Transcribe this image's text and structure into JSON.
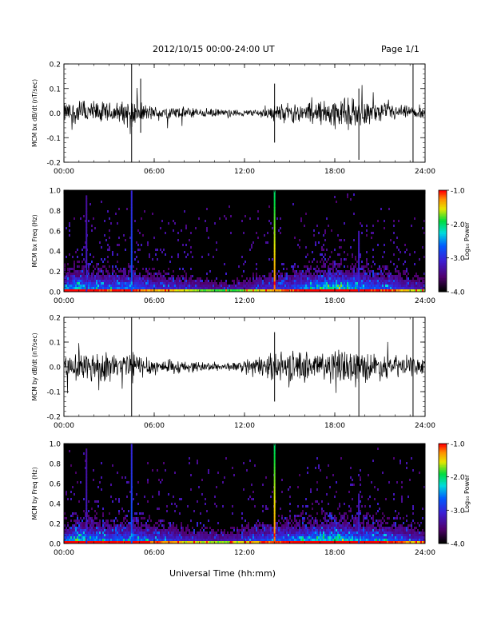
{
  "header": {
    "title": "2012/10/15  00:00-24:00 UT",
    "page": "Page 1/1"
  },
  "footer": {
    "xlabel": "Universal Time (hh:mm)"
  },
  "chart_data": [
    {
      "type": "line",
      "ylabel": "MCM bx dB/dt (nT/sec)",
      "xlim": [
        "00:00",
        "24:00"
      ],
      "xticks": [
        "00:00",
        "06:00",
        "12:00",
        "18:00",
        "24:00"
      ],
      "ylim": [
        -0.2,
        0.2
      ],
      "yticks": [
        "-0.2",
        "-0.1",
        "0.0",
        "0.1",
        "0.2"
      ],
      "envelope": {
        "x_hours": [
          0,
          1,
          2,
          3,
          4,
          4.5,
          5,
          6,
          7,
          8,
          9,
          10,
          11,
          12,
          13,
          14,
          15,
          16,
          17,
          18,
          19,
          20,
          21,
          22,
          23,
          24
        ],
        "amplitude": [
          0.06,
          0.08,
          0.07,
          0.06,
          0.07,
          0.1,
          0.06,
          0.04,
          0.04,
          0.035,
          0.03,
          0.025,
          0.02,
          0.02,
          0.025,
          0.05,
          0.06,
          0.06,
          0.08,
          0.09,
          0.09,
          0.07,
          0.06,
          0.05,
          0.04,
          0.03
        ]
      },
      "spikes": [
        {
          "x_hours": 4.5,
          "min": -0.2,
          "max": 0.2
        },
        {
          "x_hours": 5.1,
          "min": -0.08,
          "max": 0.14
        },
        {
          "x_hours": 14.0,
          "min": -0.12,
          "max": 0.12
        },
        {
          "x_hours": 19.6,
          "min": -0.19,
          "max": 0.1
        },
        {
          "x_hours": 23.2,
          "min": -0.2,
          "max": 0.2
        }
      ]
    },
    {
      "type": "heatmap",
      "ylabel": "MCM bx Freq (Hz)",
      "xlim": [
        "00:00",
        "24:00"
      ],
      "xticks": [
        "00:00",
        "06:00",
        "12:00",
        "18:00",
        "24:00"
      ],
      "ylim": [
        0.0,
        1.0
      ],
      "yticks": [
        "0.0",
        "0.2",
        "0.4",
        "0.6",
        "0.8",
        "1.0"
      ],
      "colorbar": {
        "label": "Log₁₀ Power",
        "range": [
          -4.0,
          -1.0
        ],
        "ticks": [
          "-1.0",
          "-2.0",
          "-3.0",
          "-4.0"
        ]
      },
      "activity": {
        "x_hours": [
          0,
          1,
          2,
          3,
          4,
          5,
          6,
          7,
          8,
          9,
          10,
          11,
          12,
          13,
          14,
          15,
          16,
          17,
          18,
          19,
          20,
          21,
          22,
          23,
          24
        ],
        "level": [
          0.5,
          0.6,
          0.5,
          0.45,
          0.5,
          0.45,
          0.35,
          0.35,
          0.3,
          0.25,
          0.2,
          0.2,
          0.25,
          0.3,
          0.35,
          0.4,
          0.5,
          0.6,
          0.65,
          0.6,
          0.5,
          0.45,
          0.4,
          0.3,
          0.25
        ]
      },
      "lines": [
        {
          "x_hours": 1.5,
          "top": 0.95,
          "strength": 0.3
        },
        {
          "x_hours": 4.5,
          "top": 1.0,
          "strength": 0.45
        },
        {
          "x_hours": 14.0,
          "top": 1.0,
          "strength": 0.95
        },
        {
          "x_hours": 19.6,
          "top": 0.6,
          "strength": 0.35
        }
      ]
    },
    {
      "type": "line",
      "ylabel": "MCM by dB/dt (nT/sec)",
      "xlim": [
        "00:00",
        "24:00"
      ],
      "xticks": [
        "00:00",
        "06:00",
        "12:00",
        "18:00",
        "24:00"
      ],
      "ylim": [
        -0.2,
        0.2
      ],
      "yticks": [
        "-0.2",
        "-0.1",
        "0.0",
        "0.1",
        "0.2"
      ],
      "envelope": {
        "x_hours": [
          0,
          1,
          2,
          3,
          4,
          4.5,
          5,
          6,
          7,
          8,
          9,
          10,
          11,
          12,
          13,
          14,
          15,
          16,
          17,
          18,
          19,
          20,
          21,
          22,
          23,
          24
        ],
        "amplitude": [
          0.05,
          0.1,
          0.1,
          0.08,
          0.08,
          0.12,
          0.07,
          0.05,
          0.04,
          0.035,
          0.03,
          0.025,
          0.025,
          0.03,
          0.06,
          0.08,
          0.09,
          0.09,
          0.1,
          0.1,
          0.1,
          0.09,
          0.08,
          0.07,
          0.06,
          0.04
        ]
      },
      "spikes": [
        {
          "x_hours": 4.5,
          "min": -0.2,
          "max": 0.2
        },
        {
          "x_hours": 14.0,
          "min": -0.14,
          "max": 0.14
        },
        {
          "x_hours": 19.6,
          "min": -0.2,
          "max": 0.2
        },
        {
          "x_hours": 23.2,
          "min": -0.2,
          "max": 0.2
        }
      ]
    },
    {
      "type": "heatmap",
      "ylabel": "MCM by Freq (Hz)",
      "xlim": [
        "00:00",
        "24:00"
      ],
      "xticks": [
        "00:00",
        "06:00",
        "12:00",
        "18:00",
        "24:00"
      ],
      "ylim": [
        0.0,
        1.0
      ],
      "yticks": [
        "0.0",
        "0.2",
        "0.4",
        "0.6",
        "0.8",
        "1.0"
      ],
      "colorbar": {
        "label": "Log₁₀ Power",
        "range": [
          -4.0,
          -1.0
        ],
        "ticks": [
          "-1.0",
          "-2.0",
          "-3.0",
          "-4.0"
        ]
      },
      "activity": {
        "x_hours": [
          0,
          1,
          2,
          3,
          4,
          5,
          6,
          7,
          8,
          9,
          10,
          11,
          12,
          13,
          14,
          15,
          16,
          17,
          18,
          19,
          20,
          21,
          22,
          23,
          24
        ],
        "level": [
          0.5,
          0.6,
          0.55,
          0.5,
          0.5,
          0.5,
          0.4,
          0.4,
          0.3,
          0.3,
          0.25,
          0.25,
          0.3,
          0.4,
          0.45,
          0.5,
          0.55,
          0.6,
          0.65,
          0.6,
          0.55,
          0.5,
          0.45,
          0.35,
          0.3
        ]
      },
      "lines": [
        {
          "x_hours": 1.5,
          "top": 0.95,
          "strength": 0.3
        },
        {
          "x_hours": 4.5,
          "top": 1.0,
          "strength": 0.45
        },
        {
          "x_hours": 14.0,
          "top": 1.0,
          "strength": 0.95
        },
        {
          "x_hours": 19.6,
          "top": 0.5,
          "strength": 0.35
        }
      ]
    }
  ]
}
